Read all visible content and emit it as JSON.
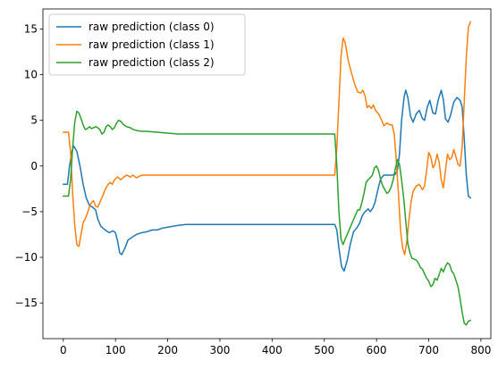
{
  "chart_data": {
    "type": "line",
    "title": "",
    "xlabel": "",
    "ylabel": "",
    "xlim": [
      -39,
      819
    ],
    "ylim": [
      -18.9,
      17.2
    ],
    "xticks": [
      0,
      100,
      200,
      300,
      400,
      500,
      600,
      700,
      800
    ],
    "yticks": [
      -15,
      -10,
      -5,
      0,
      5,
      10,
      15
    ],
    "legend": "top-left",
    "grid": false,
    "series": [
      {
        "name": "raw prediction (class 0)",
        "color": "#1f77b4",
        "points": [
          [
            0,
            -2
          ],
          [
            8,
            -2
          ],
          [
            12,
            0
          ],
          [
            16,
            1.5
          ],
          [
            20,
            2.2
          ],
          [
            26,
            1.6
          ],
          [
            32,
            0
          ],
          [
            38,
            -2
          ],
          [
            44,
            -3.5
          ],
          [
            50,
            -4.3
          ],
          [
            56,
            -4.5
          ],
          [
            62,
            -4.8
          ],
          [
            66,
            -5.8
          ],
          [
            72,
            -6.6
          ],
          [
            80,
            -7.0
          ],
          [
            88,
            -7.3
          ],
          [
            95,
            -7.1
          ],
          [
            100,
            -7.3
          ],
          [
            104,
            -8.2
          ],
          [
            108,
            -9.5
          ],
          [
            112,
            -9.7
          ],
          [
            118,
            -9.0
          ],
          [
            124,
            -8.1
          ],
          [
            132,
            -7.8
          ],
          [
            140,
            -7.5
          ],
          [
            150,
            -7.3
          ],
          [
            160,
            -7.2
          ],
          [
            170,
            -7.0
          ],
          [
            180,
            -7.0
          ],
          [
            190,
            -6.8
          ],
          [
            200,
            -6.7
          ],
          [
            210,
            -6.6
          ],
          [
            220,
            -6.5
          ],
          [
            235,
            -6.4
          ],
          [
            260,
            -6.4
          ],
          [
            300,
            -6.4
          ],
          [
            350,
            -6.4
          ],
          [
            400,
            -6.4
          ],
          [
            450,
            -6.4
          ],
          [
            500,
            -6.4
          ],
          [
            520,
            -6.4
          ],
          [
            524,
            -7.0
          ],
          [
            528,
            -9.0
          ],
          [
            533,
            -11.0
          ],
          [
            538,
            -11.5
          ],
          [
            544,
            -10.3
          ],
          [
            550,
            -8.5
          ],
          [
            556,
            -7.2
          ],
          [
            562,
            -6.8
          ],
          [
            568,
            -6.2
          ],
          [
            573,
            -5.4
          ],
          [
            578,
            -5.0
          ],
          [
            584,
            -4.7
          ],
          [
            588,
            -5.0
          ],
          [
            593,
            -4.6
          ],
          [
            597,
            -4.0
          ],
          [
            603,
            -2.5
          ],
          [
            608,
            -1.4
          ],
          [
            614,
            -1.0
          ],
          [
            620,
            -1.0
          ],
          [
            630,
            -1.0
          ],
          [
            636,
            -0.9
          ],
          [
            640,
            -0.5
          ],
          [
            644,
            1.3
          ],
          [
            648,
            5.0
          ],
          [
            653,
            7.6
          ],
          [
            656,
            8.3
          ],
          [
            660,
            7.5
          ],
          [
            665,
            5.5
          ],
          [
            670,
            4.8
          ],
          [
            676,
            5.7
          ],
          [
            682,
            6.1
          ],
          [
            688,
            5.2
          ],
          [
            692,
            5.0
          ],
          [
            697,
            6.4
          ],
          [
            702,
            7.2
          ],
          [
            708,
            5.8
          ],
          [
            713,
            5.7
          ],
          [
            718,
            7.2
          ],
          [
            724,
            8.3
          ],
          [
            728,
            7.3
          ],
          [
            732,
            5.2
          ],
          [
            737,
            4.8
          ],
          [
            742,
            5.6
          ],
          [
            748,
            7.0
          ],
          [
            754,
            7.5
          ],
          [
            760,
            7.2
          ],
          [
            764,
            6.5
          ],
          [
            768,
            3.0
          ],
          [
            772,
            -1.0
          ],
          [
            776,
            -3.3
          ],
          [
            780,
            -3.5
          ]
        ]
      },
      {
        "name": "raw prediction (class 1)",
        "color": "#ff7f0e",
        "points": [
          [
            0,
            3.7
          ],
          [
            10,
            3.7
          ],
          [
            14,
            1.5
          ],
          [
            18,
            -3.0
          ],
          [
            22,
            -6.5
          ],
          [
            26,
            -8.6
          ],
          [
            30,
            -8.8
          ],
          [
            34,
            -7.5
          ],
          [
            38,
            -6.2
          ],
          [
            42,
            -5.8
          ],
          [
            46,
            -5.2
          ],
          [
            50,
            -4.5
          ],
          [
            54,
            -4.0
          ],
          [
            58,
            -3.8
          ],
          [
            62,
            -4.4
          ],
          [
            66,
            -4.5
          ],
          [
            70,
            -4.0
          ],
          [
            76,
            -3.2
          ],
          [
            80,
            -2.6
          ],
          [
            86,
            -2.0
          ],
          [
            90,
            -1.8
          ],
          [
            94,
            -2.0
          ],
          [
            98,
            -1.5
          ],
          [
            104,
            -1.2
          ],
          [
            110,
            -1.5
          ],
          [
            116,
            -1.2
          ],
          [
            122,
            -1.0
          ],
          [
            128,
            -1.2
          ],
          [
            134,
            -1.0
          ],
          [
            140,
            -1.3
          ],
          [
            146,
            -1.1
          ],
          [
            152,
            -1.0
          ],
          [
            160,
            -1.0
          ],
          [
            180,
            -1.0
          ],
          [
            220,
            -1.0
          ],
          [
            300,
            -1.0
          ],
          [
            400,
            -1.0
          ],
          [
            500,
            -1.0
          ],
          [
            520,
            -1.0
          ],
          [
            524,
            2.0
          ],
          [
            528,
            7.0
          ],
          [
            532,
            12.0
          ],
          [
            536,
            14.0
          ],
          [
            540,
            13.5
          ],
          [
            546,
            11.5
          ],
          [
            552,
            10.2
          ],
          [
            558,
            9.0
          ],
          [
            564,
            8.1
          ],
          [
            570,
            8.0
          ],
          [
            574,
            8.3
          ],
          [
            578,
            7.7
          ],
          [
            582,
            6.4
          ],
          [
            586,
            6.6
          ],
          [
            590,
            6.3
          ],
          [
            594,
            6.7
          ],
          [
            598,
            6.1
          ],
          [
            604,
            5.7
          ],
          [
            610,
            5.0
          ],
          [
            614,
            4.4
          ],
          [
            620,
            4.7
          ],
          [
            626,
            4.5
          ],
          [
            630,
            4.5
          ],
          [
            634,
            3.5
          ],
          [
            638,
            0.5
          ],
          [
            642,
            -3.0
          ],
          [
            646,
            -7.0
          ],
          [
            650,
            -9.0
          ],
          [
            654,
            -9.7
          ],
          [
            658,
            -8.3
          ],
          [
            662,
            -6.0
          ],
          [
            666,
            -4.0
          ],
          [
            670,
            -2.8
          ],
          [
            676,
            -2.2
          ],
          [
            682,
            -2.0
          ],
          [
            688,
            -2.6
          ],
          [
            692,
            -2.2
          ],
          [
            696,
            -0.5
          ],
          [
            700,
            1.5
          ],
          [
            704,
            1.0
          ],
          [
            708,
            -0.2
          ],
          [
            712,
            0.2
          ],
          [
            716,
            1.3
          ],
          [
            720,
            0.4
          ],
          [
            724,
            -1.5
          ],
          [
            728,
            -2.4
          ],
          [
            732,
            -0.5
          ],
          [
            736,
            1.3
          ],
          [
            740,
            0.7
          ],
          [
            744,
            0.9
          ],
          [
            748,
            1.8
          ],
          [
            752,
            1.0
          ],
          [
            756,
            0.2
          ],
          [
            760,
            0.0
          ],
          [
            764,
            2.0
          ],
          [
            768,
            7.0
          ],
          [
            772,
            12.0
          ],
          [
            776,
            15.2
          ],
          [
            780,
            15.8
          ]
        ]
      },
      {
        "name": "raw prediction (class 2)",
        "color": "#2ca02c",
        "points": [
          [
            0,
            -3.3
          ],
          [
            10,
            -3.3
          ],
          [
            14,
            -1.5
          ],
          [
            18,
            2.0
          ],
          [
            22,
            4.8
          ],
          [
            26,
            6.0
          ],
          [
            30,
            5.8
          ],
          [
            34,
            5.2
          ],
          [
            38,
            4.5
          ],
          [
            42,
            4.0
          ],
          [
            46,
            4.1
          ],
          [
            50,
            4.3
          ],
          [
            54,
            4.1
          ],
          [
            58,
            4.2
          ],
          [
            62,
            4.3
          ],
          [
            66,
            4.2
          ],
          [
            70,
            4.0
          ],
          [
            74,
            3.5
          ],
          [
            78,
            3.7
          ],
          [
            82,
            4.3
          ],
          [
            86,
            4.5
          ],
          [
            90,
            4.3
          ],
          [
            94,
            4.0
          ],
          [
            98,
            4.2
          ],
          [
            102,
            4.7
          ],
          [
            106,
            5.0
          ],
          [
            110,
            4.9
          ],
          [
            116,
            4.5
          ],
          [
            122,
            4.3
          ],
          [
            128,
            4.2
          ],
          [
            134,
            4.0
          ],
          [
            140,
            3.9
          ],
          [
            150,
            3.8
          ],
          [
            160,
            3.8
          ],
          [
            180,
            3.7
          ],
          [
            200,
            3.6
          ],
          [
            220,
            3.5
          ],
          [
            300,
            3.5
          ],
          [
            400,
            3.5
          ],
          [
            500,
            3.5
          ],
          [
            520,
            3.5
          ],
          [
            524,
            0.0
          ],
          [
            528,
            -5.0
          ],
          [
            532,
            -8.0
          ],
          [
            536,
            -8.6
          ],
          [
            540,
            -8.0
          ],
          [
            546,
            -7.2
          ],
          [
            552,
            -6.4
          ],
          [
            558,
            -5.6
          ],
          [
            564,
            -4.8
          ],
          [
            568,
            -4.8
          ],
          [
            572,
            -4.0
          ],
          [
            576,
            -3.0
          ],
          [
            580,
            -1.8
          ],
          [
            584,
            -1.5
          ],
          [
            588,
            -1.3
          ],
          [
            592,
            -1.0
          ],
          [
            596,
            -0.2
          ],
          [
            600,
            0.0
          ],
          [
            604,
            -0.5
          ],
          [
            608,
            -1.5
          ],
          [
            612,
            -2.2
          ],
          [
            616,
            -2.6
          ],
          [
            620,
            -3.0
          ],
          [
            624,
            -2.8
          ],
          [
            628,
            -2.3
          ],
          [
            632,
            -1.5
          ],
          [
            636,
            -0.3
          ],
          [
            640,
            0.7
          ],
          [
            644,
            0.2
          ],
          [
            648,
            -1.5
          ],
          [
            652,
            -3.5
          ],
          [
            656,
            -6.0
          ],
          [
            660,
            -8.5
          ],
          [
            664,
            -9.5
          ],
          [
            668,
            -10.1
          ],
          [
            672,
            -10.2
          ],
          [
            676,
            -10.3
          ],
          [
            680,
            -10.6
          ],
          [
            684,
            -11.1
          ],
          [
            688,
            -11.3
          ],
          [
            692,
            -11.8
          ],
          [
            696,
            -12.3
          ],
          [
            700,
            -12.6
          ],
          [
            704,
            -13.2
          ],
          [
            708,
            -13.0
          ],
          [
            712,
            -12.3
          ],
          [
            716,
            -12.5
          ],
          [
            720,
            -11.9
          ],
          [
            724,
            -11.2
          ],
          [
            728,
            -11.6
          ],
          [
            732,
            -11.0
          ],
          [
            736,
            -10.6
          ],
          [
            740,
            -10.8
          ],
          [
            744,
            -11.5
          ],
          [
            748,
            -11.8
          ],
          [
            752,
            -12.5
          ],
          [
            756,
            -13.2
          ],
          [
            760,
            -14.5
          ],
          [
            764,
            -16.0
          ],
          [
            768,
            -17.2
          ],
          [
            772,
            -17.4
          ],
          [
            776,
            -17.0
          ],
          [
            780,
            -16.9
          ]
        ]
      }
    ]
  }
}
